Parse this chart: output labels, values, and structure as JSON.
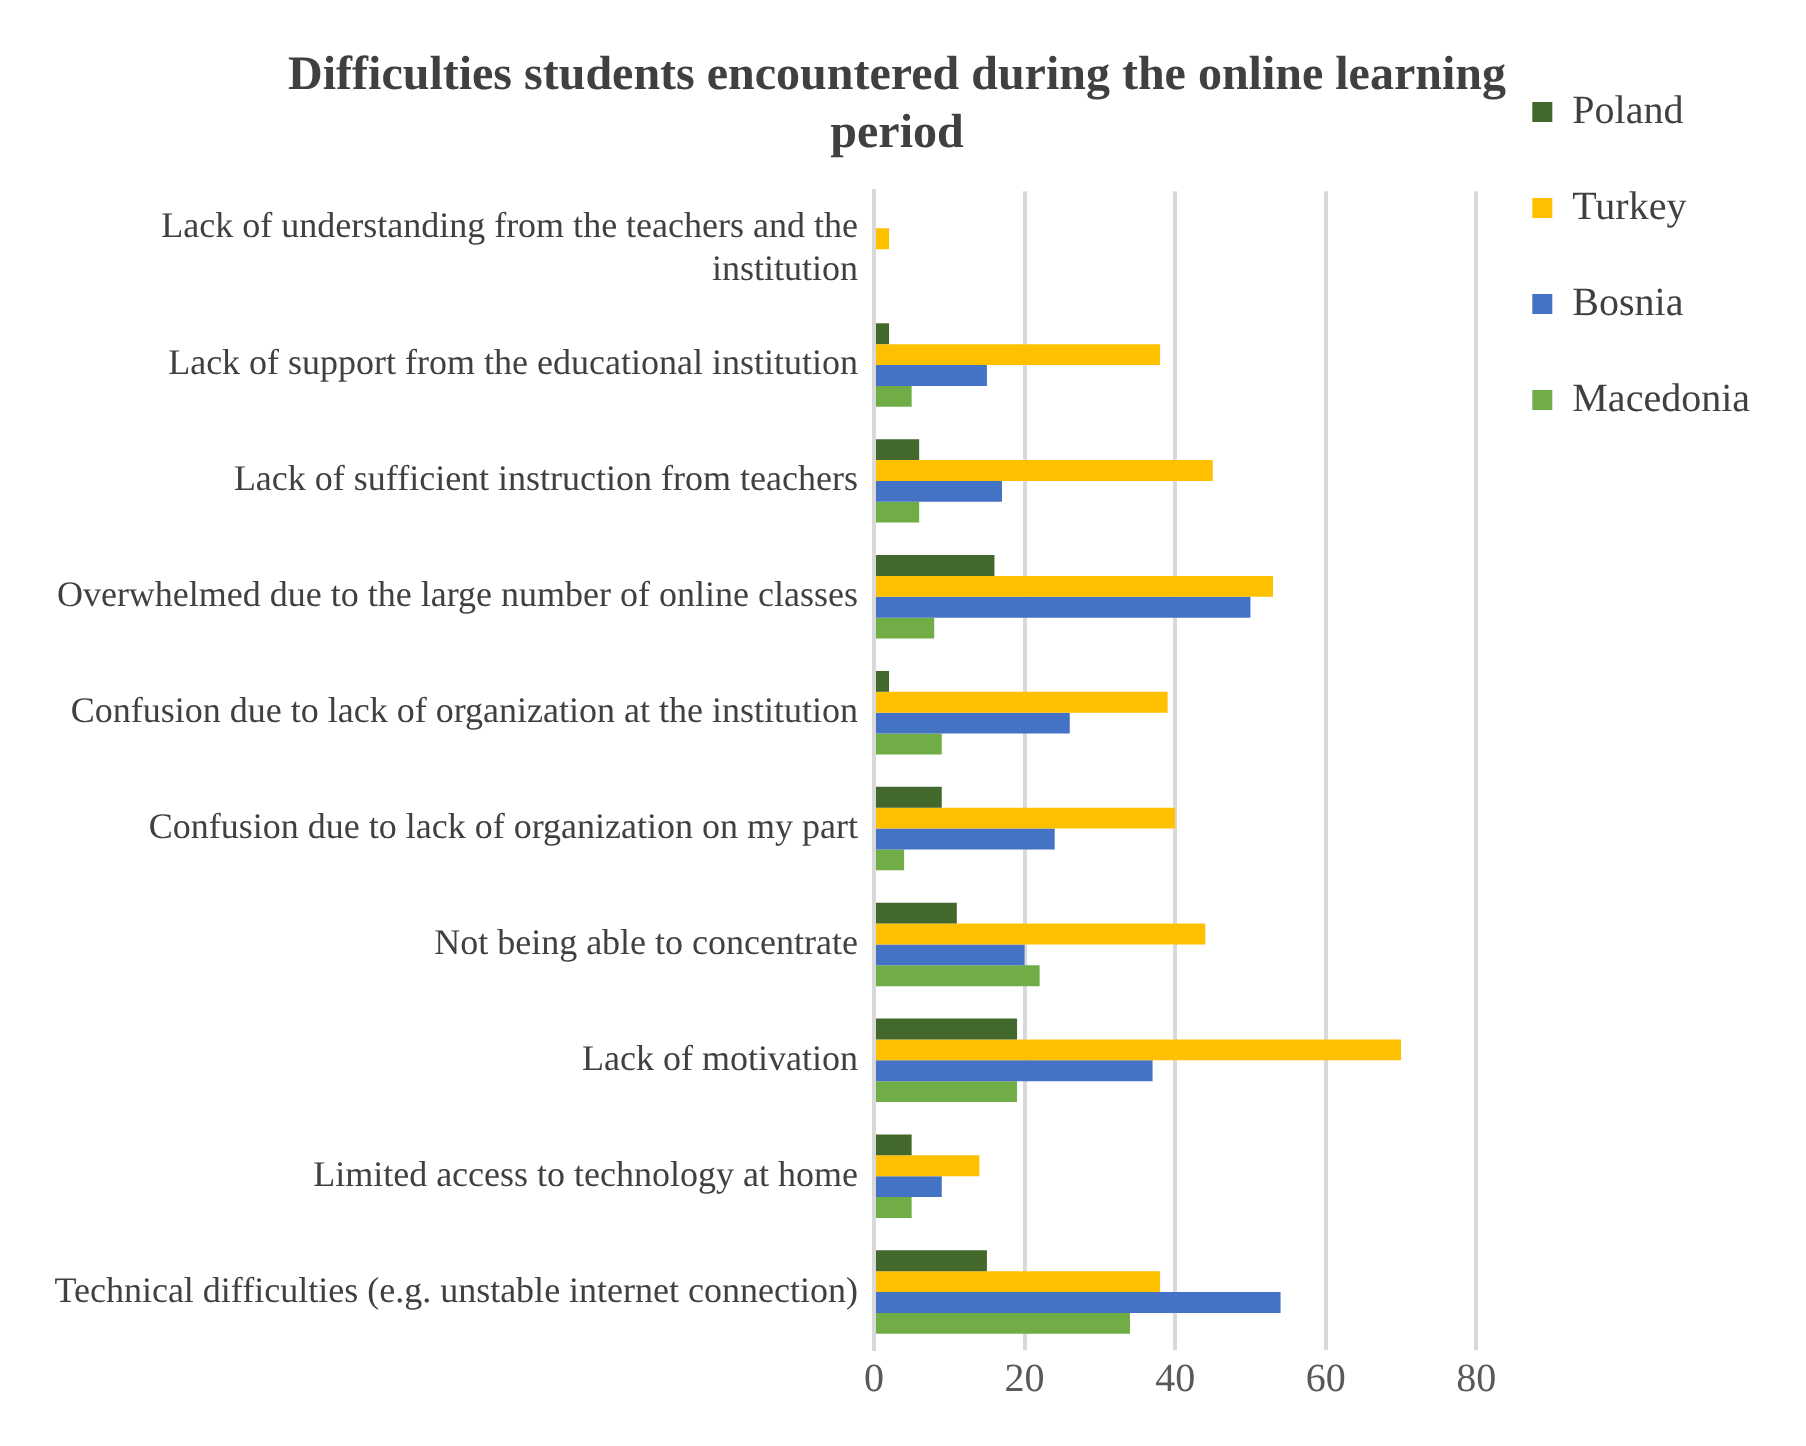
{
  "chart_data": {
    "type": "bar",
    "orientation": "horizontal",
    "title": "Difficulties students encountered during the online learning period",
    "categories": [
      "Lack of understanding from the teachers and the institution",
      "Lack of support from the educational institution",
      "Lack of sufficient instruction from teachers",
      "Overwhelmed due to the large number of online classes",
      "Confusion due to lack of organization at the institution",
      "Confusion due to lack of organization on my part",
      "Not being able to concentrate",
      "Lack of motivation",
      "Limited access to technology at home",
      "Technical difficulties (e.g. unstable internet connection)"
    ],
    "series": [
      {
        "name": "Poland",
        "color": "#43682b",
        "values": [
          null,
          2,
          6,
          16,
          2,
          9,
          11,
          19,
          5,
          15
        ]
      },
      {
        "name": "Turkey",
        "color": "#ffc000",
        "values": [
          2,
          38,
          45,
          53,
          39,
          40,
          44,
          70,
          14,
          38
        ]
      },
      {
        "name": "Bosnia",
        "color": "#4472c4",
        "values": [
          null,
          15,
          17,
          50,
          26,
          24,
          20,
          37,
          9,
          54
        ]
      },
      {
        "name": "Macedonia",
        "color": "#70ad47",
        "values": [
          null,
          5,
          6,
          8,
          9,
          4,
          22,
          19,
          5,
          34
        ]
      }
    ],
    "xlim": [
      0,
      80
    ],
    "xticks": [
      0,
      20,
      40,
      60,
      80
    ],
    "grid": "x",
    "legend": "right"
  }
}
